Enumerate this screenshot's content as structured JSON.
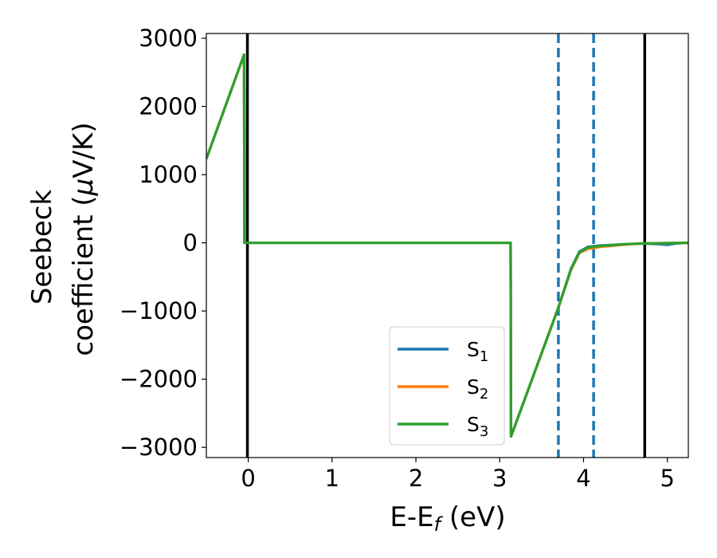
{
  "chart_data": {
    "type": "line",
    "title": "",
    "xlabel": {
      "base": "E-E",
      "sub": "f",
      "unit": " (eV)"
    },
    "ylabel": {
      "line1": "Seebeck",
      "line2_prefix": "coefficient  (",
      "mu": "μ",
      "line2_suffix": "V/K)"
    },
    "xlim": [
      -0.5,
      5.25
    ],
    "ylim": [
      -3150,
      3070
    ],
    "xticks": [
      0,
      1,
      2,
      3,
      4,
      5
    ],
    "yticks": [
      3000,
      2000,
      1000,
      0,
      -1000,
      -2000,
      -3000
    ],
    "ytick_labels": [
      "3000",
      "2000",
      "1000",
      "0",
      "−1000",
      "−2000",
      "−3000"
    ],
    "grid": false,
    "legend_position": "lower-center",
    "vertical_lines": [
      {
        "x": -0.01,
        "color": "#000000",
        "style": "solid"
      },
      {
        "x": 3.7,
        "color": "#1f77b4",
        "style": "dashed"
      },
      {
        "x": 4.12,
        "color": "#1f77b4",
        "style": "dashed"
      },
      {
        "x": 4.73,
        "color": "#000000",
        "style": "solid"
      }
    ],
    "series": [
      {
        "name_base": "S",
        "name_sub": "1",
        "color": "#1f77b4",
        "points": [
          [
            -0.5,
            1230
          ],
          [
            -0.05,
            2760
          ],
          [
            -0.045,
            0
          ],
          [
            3.13,
            0
          ],
          [
            3.135,
            -2840
          ],
          [
            3.7,
            -950
          ],
          [
            3.85,
            -380
          ],
          [
            3.95,
            -130
          ],
          [
            4.05,
            -60
          ],
          [
            4.2,
            -40
          ],
          [
            4.5,
            -20
          ],
          [
            4.7,
            -10
          ],
          [
            4.9,
            -20
          ],
          [
            5.0,
            -30
          ],
          [
            5.1,
            -10
          ],
          [
            5.25,
            0
          ]
        ]
      },
      {
        "name_base": "S",
        "name_sub": "2",
        "color": "#ff7f0e",
        "points": [
          [
            -0.5,
            1230
          ],
          [
            -0.05,
            2760
          ],
          [
            -0.045,
            0
          ],
          [
            3.13,
            0
          ],
          [
            3.135,
            -2840
          ],
          [
            3.7,
            -950
          ],
          [
            3.85,
            -400
          ],
          [
            3.95,
            -150
          ],
          [
            4.05,
            -90
          ],
          [
            4.2,
            -60
          ],
          [
            4.5,
            -25
          ],
          [
            4.7,
            -10
          ],
          [
            5.0,
            -5
          ],
          [
            5.25,
            0
          ]
        ]
      },
      {
        "name_base": "S",
        "name_sub": "3",
        "color": "#2ca02c",
        "points": [
          [
            -0.5,
            1230
          ],
          [
            -0.05,
            2760
          ],
          [
            -0.045,
            0
          ],
          [
            3.13,
            0
          ],
          [
            3.135,
            -2840
          ],
          [
            3.7,
            -950
          ],
          [
            3.85,
            -390
          ],
          [
            3.95,
            -140
          ],
          [
            4.05,
            -70
          ],
          [
            4.2,
            -45
          ],
          [
            4.5,
            -20
          ],
          [
            4.7,
            -10
          ],
          [
            5.0,
            -5
          ],
          [
            5.25,
            0
          ]
        ]
      }
    ]
  }
}
